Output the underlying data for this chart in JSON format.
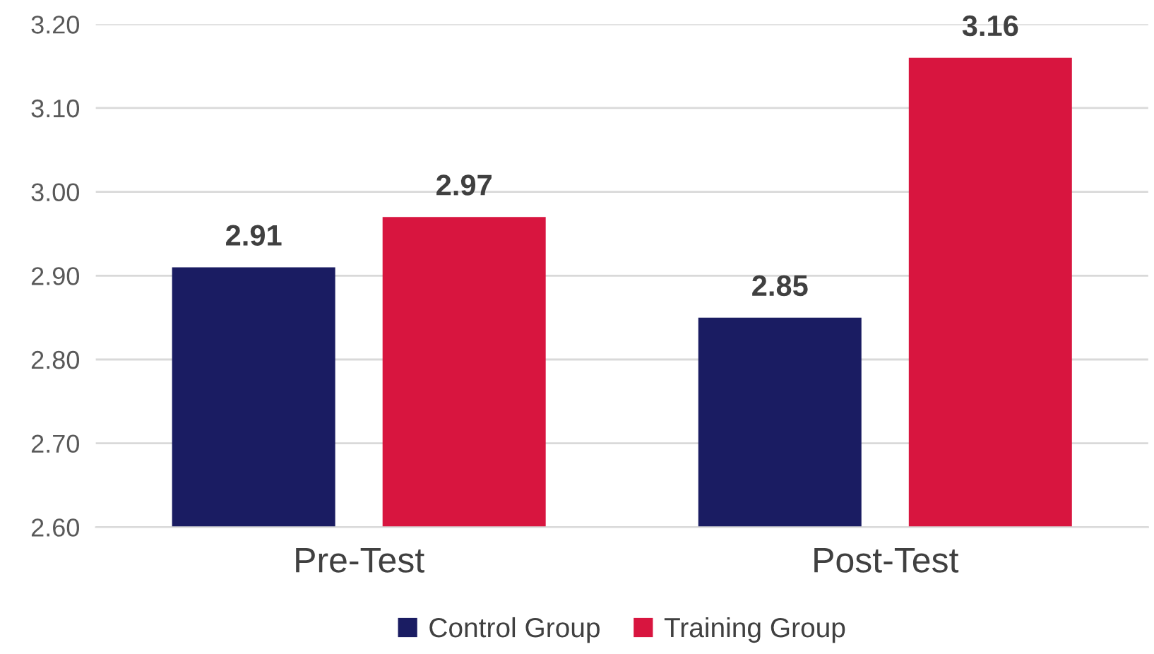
{
  "chart_data": {
    "type": "bar",
    "categories": [
      "Pre-Test",
      "Post-Test"
    ],
    "series": [
      {
        "name": "Control Group",
        "color": "#1a1c62",
        "values": [
          2.91,
          2.85
        ]
      },
      {
        "name": "Training Group",
        "color": "#d8153f",
        "values": [
          2.97,
          3.16
        ]
      }
    ],
    "ylim": [
      2.6,
      3.2
    ],
    "yticks": [
      {
        "value": 2.6,
        "label": "2.60"
      },
      {
        "value": 2.7,
        "label": "2.70"
      },
      {
        "value": 2.8,
        "label": "2.80"
      },
      {
        "value": 2.9,
        "label": "2.90"
      },
      {
        "value": 3.0,
        "label": "3.00"
      },
      {
        "value": 3.1,
        "label": "3.10"
      },
      {
        "value": 3.2,
        "label": "3.20"
      }
    ],
    "grid": "y",
    "legend": "bottom",
    "data_labels": true
  }
}
